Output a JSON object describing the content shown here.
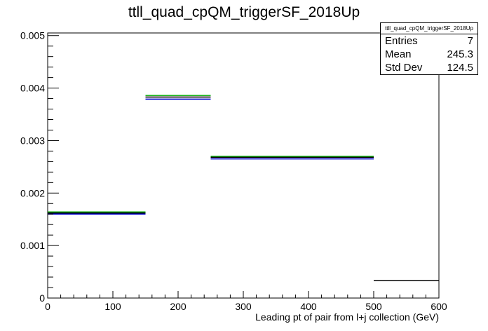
{
  "chart_data": {
    "type": "bar",
    "title": "ttll_quad_cpQM_triggerSF_2018Up",
    "xlabel": "Leading pt of pair from l+j collection (GeV)",
    "ylabel": "",
    "xlim": [
      0,
      600
    ],
    "ylim": [
      0,
      0.00505
    ],
    "x_ticks": [
      "0",
      "100",
      "200",
      "300",
      "400",
      "500",
      "600"
    ],
    "y_ticks": [
      "0",
      "0.001",
      "0.002",
      "0.003",
      "0.004",
      "0.005"
    ],
    "bins": [
      [
        0,
        150
      ],
      [
        150,
        250
      ],
      [
        250,
        500
      ],
      [
        500,
        600
      ]
    ],
    "series": [
      {
        "color": "#00aa00",
        "values": [
          0.00164,
          0.00386,
          0.0027,
          null
        ]
      },
      {
        "color": "#000000",
        "values": [
          0.00162,
          0.00383,
          0.00268,
          0.00033
        ]
      },
      {
        "color": "#0000cc",
        "values": [
          0.0016,
          0.00379,
          0.00265,
          null
        ]
      }
    ],
    "grid": false,
    "legend": "none"
  },
  "stats": {
    "title": "ttll_quad_cpQM_triggerSF_2018Up",
    "rows": [
      {
        "label": "Entries",
        "value": "7"
      },
      {
        "label": "Mean",
        "value": "245.3"
      },
      {
        "label": "Std Dev",
        "value": "124.5"
      }
    ]
  }
}
